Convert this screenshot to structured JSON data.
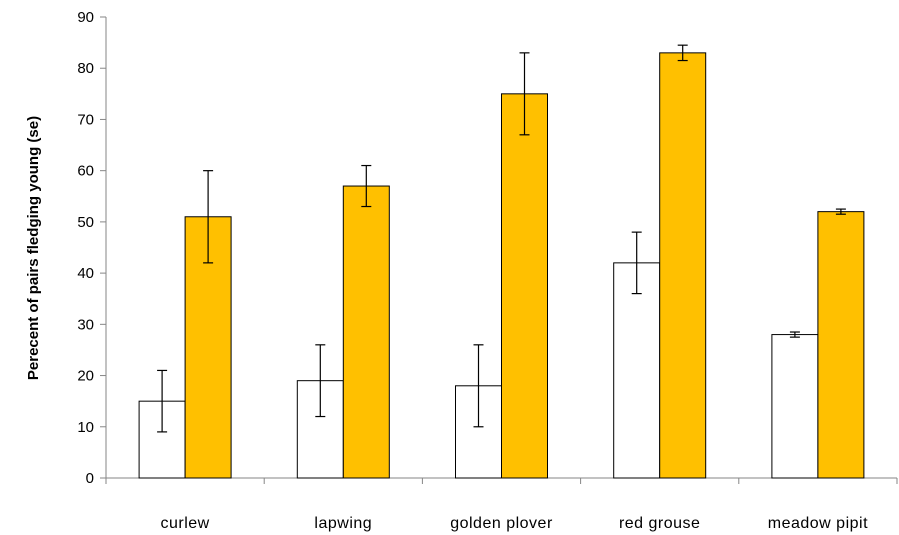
{
  "chart_data": {
    "type": "bar",
    "ylabel": "Perecent of  pairs fledging young (se)",
    "ylim": [
      0,
      90
    ],
    "yticks": [
      0,
      10,
      20,
      30,
      40,
      50,
      60,
      70,
      80,
      90
    ],
    "grid": false,
    "categories": [
      "curlew",
      "lapwing",
      "golden plover",
      "red grouse",
      "meadow pipit"
    ],
    "series": [
      {
        "color": "#ffffff",
        "values": [
          15,
          19,
          18,
          42,
          28
        ],
        "errors": [
          6,
          7,
          8,
          6,
          0.5
        ]
      },
      {
        "color": "#ffc000",
        "values": [
          51,
          57,
          75,
          83,
          52
        ],
        "errors": [
          9,
          4,
          8,
          1.5,
          0.5
        ]
      }
    ]
  }
}
